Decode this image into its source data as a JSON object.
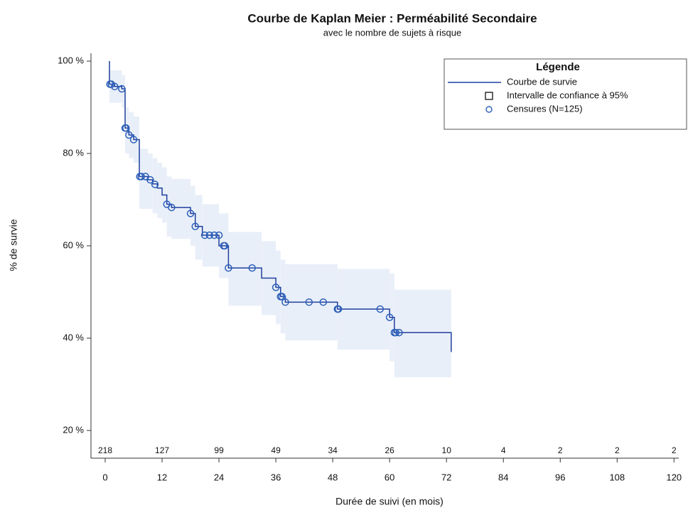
{
  "chart_data": {
    "type": "km",
    "title": "Courbe de Kaplan Meier : Perméabilité Secondaire",
    "subtitle": "avec le nombre de sujets à risque",
    "x_label": "Durée de suivi (en mois)",
    "y_label": "% de survie",
    "xlim": [
      -3,
      121
    ],
    "ylim": [
      14,
      101.7
    ],
    "xticks": [
      0,
      12,
      24,
      36,
      48,
      60,
      72,
      84,
      96,
      108,
      120
    ],
    "yticks": [
      {
        "value": 20,
        "label": "20 %"
      },
      {
        "value": 40,
        "label": "40 %"
      },
      {
        "value": 60,
        "label": "60 %"
      },
      {
        "value": 80,
        "label": "80 %"
      },
      {
        "value": 100,
        "label": "100 %"
      }
    ],
    "at_risk": {
      "values": [
        218,
        127,
        99,
        49,
        34,
        26,
        10,
        4,
        2,
        2,
        2
      ]
    },
    "series": [
      {
        "name": "Courbe de survie",
        "color": "#1f3f9f",
        "x": [
          0.9,
          0.9,
          2,
          3.5,
          4.2,
          5,
          6,
          7.2,
          9,
          10,
          11,
          12,
          13,
          14,
          18,
          19,
          20.5,
          24,
          26,
          33,
          36,
          37,
          38,
          49,
          60,
          61,
          73
        ],
        "values": [
          100,
          95,
          94.5,
          94,
          85.5,
          84,
          83,
          75,
          74.3,
          73.4,
          72.5,
          71,
          69,
          68.3,
          67,
          64.2,
          62.3,
          60,
          55.2,
          53,
          51,
          49,
          47.8,
          46.3,
          44.5,
          41.2,
          37
        ]
      }
    ],
    "confidence_band": {
      "name": "Intervalle de confiance à 95%",
      "color": "#e9eff8",
      "lower": [
        100,
        91,
        91,
        90,
        80,
        79,
        78,
        68,
        68,
        67,
        66,
        65,
        62,
        61.5,
        60,
        57,
        55.5,
        53,
        47,
        45,
        43,
        41,
        39.5,
        37.5,
        35,
        31.5,
        31.5
      ],
      "upper": [
        100,
        98,
        98,
        97,
        90,
        89,
        88,
        81,
        80,
        79,
        78,
        77,
        75,
        74.5,
        73,
        71,
        69,
        67,
        63,
        61,
        59,
        57,
        56,
        55,
        54,
        50.5,
        50.5
      ]
    },
    "censored": {
      "name": "Censures (N=125)",
      "color": "#2b5fb8",
      "x": [
        1,
        1.3,
        2,
        3.5,
        4.2,
        4.4,
        5,
        6,
        7.3,
        7.6,
        8.5,
        9.5,
        10.5,
        13,
        14,
        18,
        19,
        21,
        22,
        23,
        24,
        25,
        25.2,
        26,
        31,
        36,
        37,
        37.3,
        38,
        43,
        46,
        49,
        49.2,
        58,
        60,
        61,
        61.3,
        62
      ],
      "values": [
        95,
        95,
        94.5,
        94,
        85.5,
        85.5,
        84,
        83,
        75,
        75,
        75,
        74.3,
        73.3,
        69,
        68.3,
        67,
        64.2,
        62.3,
        62.3,
        62.3,
        62.3,
        60,
        60,
        55.2,
        55.2,
        51,
        49,
        49,
        47.8,
        47.8,
        47.8,
        46.3,
        46.3,
        46.3,
        44.5,
        41.2,
        41.2,
        41.2
      ]
    },
    "legend": {
      "title": "Légende",
      "position": "top right"
    }
  }
}
